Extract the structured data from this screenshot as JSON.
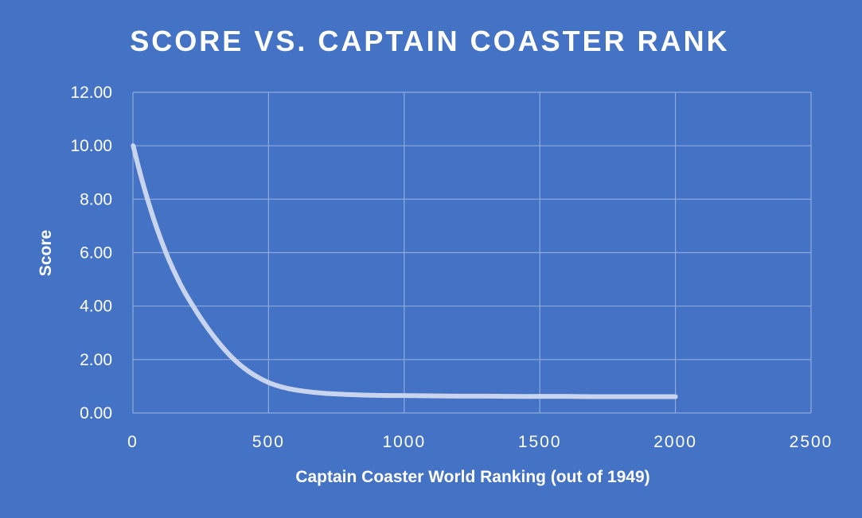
{
  "chart_data": {
    "type": "line",
    "title": "SCORE VS. CAPTAIN COASTER RANK",
    "xlabel": "Captain Coaster World Ranking (out of 1949)",
    "ylabel": "Score",
    "xlim": [
      0,
      2500
    ],
    "ylim": [
      0,
      12
    ],
    "x_ticks": [
      "0",
      "500",
      "1000",
      "1500",
      "2000",
      "2500"
    ],
    "y_ticks": [
      "0.00",
      "2.00",
      "4.00",
      "6.00",
      "8.00",
      "10.00",
      "12.00"
    ],
    "grid": true,
    "legend": "none",
    "series": [
      {
        "name": "Score",
        "color": "#C9D5EE",
        "x": [
          1,
          25,
          50,
          75,
          100,
          125,
          150,
          175,
          200,
          250,
          300,
          350,
          400,
          450,
          500,
          550,
          600,
          700,
          800,
          900,
          1000,
          1100,
          1200,
          1300,
          1400,
          1500,
          1600,
          1700,
          1800,
          1900,
          2000
        ],
        "values": [
          10.0,
          9.03,
          8.13,
          7.31,
          6.58,
          5.92,
          5.34,
          4.82,
          4.36,
          3.55,
          2.84,
          2.24,
          1.76,
          1.4,
          1.14,
          0.97,
          0.86,
          0.74,
          0.69,
          0.66,
          0.65,
          0.64,
          0.63,
          0.63,
          0.62,
          0.62,
          0.62,
          0.61,
          0.61,
          0.61,
          0.61
        ]
      }
    ]
  },
  "colors": {
    "background": "#4472C4",
    "grid": "#8FAADC",
    "text": "#FFFFFF",
    "line": "#C9D5EE"
  }
}
